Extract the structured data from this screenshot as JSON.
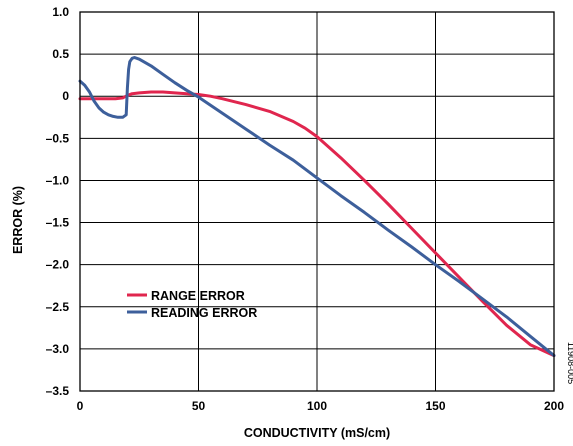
{
  "chart_data": {
    "type": "line",
    "title": "",
    "xlabel": "CONDUCTIVITY (mS/cm)",
    "ylabel": "ERROR (%)",
    "xlim": [
      0,
      200
    ],
    "ylim": [
      -3.5,
      1.0
    ],
    "xticks": [
      0,
      50,
      100,
      150,
      200
    ],
    "xtick_labels": [
      "0",
      "50",
      "100",
      "150",
      "200"
    ],
    "yticks": [
      1.0,
      0.5,
      0,
      -0.5,
      -1.0,
      -1.5,
      -2.0,
      -2.5,
      -3.0,
      -3.5
    ],
    "ytick_labels": [
      "1.0",
      "0.5",
      "0",
      "–0.5",
      "–1.0",
      "–1.5",
      "–2.0",
      "–2.5",
      "–3.0",
      "–3.5"
    ],
    "grid": true,
    "legend_position": "lower-left",
    "figure_id": "11908-005",
    "series": [
      {
        "name": "RANGE ERROR",
        "color": "#e0264e",
        "x": [
          0,
          5,
          10,
          15,
          18,
          20,
          22,
          25,
          30,
          35,
          40,
          45,
          50,
          55,
          60,
          70,
          80,
          90,
          95,
          100,
          110,
          120,
          130,
          140,
          150,
          160,
          170,
          180,
          190,
          200
        ],
        "y": [
          -0.03,
          -0.03,
          -0.03,
          -0.03,
          -0.02,
          0.01,
          0.03,
          0.04,
          0.05,
          0.05,
          0.04,
          0.03,
          0.02,
          0.0,
          -0.03,
          -0.1,
          -0.18,
          -0.3,
          -0.38,
          -0.48,
          -0.73,
          -1.0,
          -1.28,
          -1.57,
          -1.86,
          -2.15,
          -2.44,
          -2.72,
          -2.95,
          -3.08
        ]
      },
      {
        "name": "READING ERROR",
        "color": "#3d5f9b",
        "x": [
          0,
          2,
          4,
          6,
          8,
          10,
          12,
          14,
          16,
          18,
          19.5,
          20,
          20.5,
          21,
          22,
          23,
          25,
          30,
          35,
          40,
          45,
          50,
          60,
          70,
          80,
          90,
          100,
          110,
          120,
          130,
          140,
          150,
          160,
          170,
          180,
          190,
          200
        ],
        "y": [
          0.18,
          0.13,
          0.05,
          -0.06,
          -0.14,
          -0.19,
          -0.22,
          -0.24,
          -0.25,
          -0.25,
          -0.22,
          0.1,
          0.32,
          0.41,
          0.45,
          0.46,
          0.44,
          0.36,
          0.26,
          0.16,
          0.07,
          -0.01,
          -0.2,
          -0.39,
          -0.58,
          -0.76,
          -0.97,
          -1.18,
          -1.38,
          -1.59,
          -1.79,
          -2.0,
          -2.2,
          -2.41,
          -2.62,
          -2.85,
          -3.08
        ]
      }
    ]
  }
}
